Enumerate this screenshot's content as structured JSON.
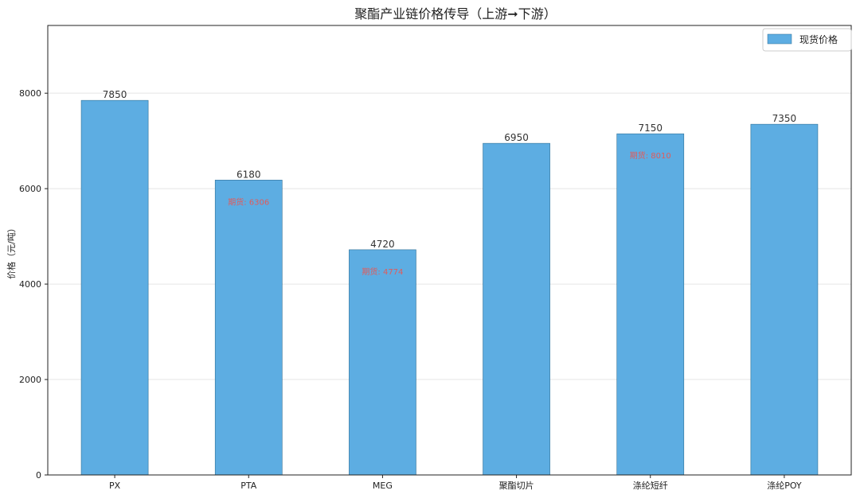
{
  "chart_data": {
    "type": "bar",
    "title": "聚酯产业链价格传导（上游➞下游）",
    "xlabel": "",
    "ylabel": "价格（元/吨）",
    "categories": [
      "PX",
      "PTA",
      "MEG",
      "聚酯切片",
      "涤纶短纤",
      "涤纶POY"
    ],
    "series": [
      {
        "name": "现货价格",
        "values": [
          7850,
          6180,
          4720,
          6950,
          7150,
          7350
        ],
        "color": "#5dade2"
      }
    ],
    "value_labels": [
      "7850",
      "6180",
      "4720",
      "6950",
      "7150",
      "7350"
    ],
    "futures_labels": [
      "",
      "期货: 6306",
      "期货: 4774",
      "",
      "期货: 8010",
      ""
    ],
    "ylim": [
      0,
      9420
    ],
    "yticks": [
      0,
      2000,
      4000,
      6000,
      8000
    ],
    "ytick_labels": [
      "0",
      "2000",
      "4000",
      "6000",
      "8000"
    ],
    "grid": true,
    "legend_position": "top-right",
    "colors": {
      "bar": "#5dade2",
      "bar_edge": "#2e6f96",
      "futures_text": "#e15b5b",
      "grid": "#e5e5e5"
    }
  }
}
